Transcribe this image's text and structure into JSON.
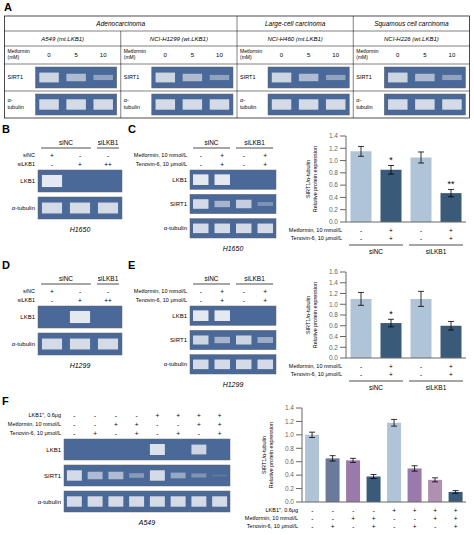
{
  "chart_data": [
    {
      "type": "blot_table",
      "title": "A",
      "color": "#4a6898",
      "columns": [
        {
          "category": "Adenocarcinoma",
          "cell_lines": [
            "A549 (mt.LKB1)",
            "NCI-H1299 (wt.LKB1)"
          ]
        },
        {
          "category": "Large-cell carcinoma",
          "cell_lines": [
            "NCI-H460 (mt.LKB1)"
          ]
        },
        {
          "category": "Squamous cell carcinoma",
          "cell_lines": [
            "NCI-H226 (wt.LKB1)"
          ]
        }
      ],
      "condition_rows": [
        {
          "label": "Metformin\n(mM)",
          "values": [
            0,
            5,
            10
          ]
        }
      ],
      "blots": [
        {
          "label": "SIRT1",
          "bands": [
            0.85,
            0.65,
            0.45
          ]
        },
        {
          "label": "α-\ntubulin",
          "bands": [
            0.9,
            0.9,
            0.9
          ]
        }
      ]
    },
    {
      "type": "blot",
      "title": "B",
      "color": "#4a6898",
      "groups": [
        "siNC",
        "siNC",
        "siLKB1"
      ],
      "condition_rows": [
        {
          "label": "siNC",
          "signs": [
            "+",
            "-",
            "-"
          ]
        },
        {
          "label": "siLKB1",
          "signs": [
            "-",
            "+",
            "++"
          ]
        }
      ],
      "blots": [
        {
          "label": "LKB1",
          "bands": [
            1.0,
            0.0,
            0.0
          ]
        },
        {
          "label": "α-tubulin",
          "bands": [
            0.9,
            0.9,
            0.9
          ]
        }
      ],
      "xlabel": "H1650"
    },
    {
      "type": "blot",
      "title": "C",
      "color": "#4a6898",
      "groups": [
        "siNC",
        "siNC",
        "siLKB1",
        "siLKB1"
      ],
      "condition_rows": [
        {
          "label": "Metformin, 10 mmol/L",
          "signs": [
            "-",
            "+",
            "-",
            "+"
          ]
        },
        {
          "label": "Tenovin-6, 10 μmol/L",
          "signs": [
            "-",
            "+",
            "-",
            "+"
          ]
        }
      ],
      "blots": [
        {
          "label": "LKB1",
          "bands": [
            1.0,
            1.0,
            0.0,
            0.0
          ]
        },
        {
          "label": "SIRT1",
          "bands": [
            0.9,
            0.6,
            0.8,
            0.35
          ]
        },
        {
          "label": "α-tubulin",
          "bands": [
            0.9,
            0.9,
            0.9,
            0.9
          ]
        }
      ],
      "xlabel": "H1650"
    },
    {
      "type": "bar",
      "categories": [
        null,
        null,
        null,
        null
      ],
      "values": [
        1.15,
        0.85,
        1.05,
        0.47
      ],
      "errors": [
        0.08,
        0.07,
        0.09,
        0.06
      ],
      "colors": [
        "#b0c4d8",
        "#3a5a7a",
        "#b0c4d8",
        "#3a5a7a"
      ],
      "ylim": [
        0,
        1.4
      ],
      "yticks": [
        {
          "value": 0,
          "label": "0.0"
        },
        0.2,
        0.4,
        0.6,
        0.8,
        {
          "value": 1,
          "label": "1.0"
        },
        1.2,
        1.4
      ],
      "ylabel": "SIRT1/α-tubulin\nRelative protein expression",
      "significance": [
        null,
        "*",
        null,
        "**"
      ],
      "condition_rows": [
        {
          "label": "Metformin, 10 mmol/L",
          "signs": [
            "-",
            "+",
            "-",
            "+"
          ]
        },
        {
          "label": "Tenovin-6, 10 μmol/L",
          "signs": [
            "-",
            "+",
            "-",
            "+"
          ]
        }
      ],
      "groups": [
        "siNC",
        "siNC",
        "siLKB1",
        "siLKB1"
      ]
    },
    {
      "type": "blot",
      "title": "D",
      "color": "#4a6898",
      "groups": [
        "siNC",
        "siNC",
        "siLKB1"
      ],
      "condition_rows": [
        {
          "label": "siNC",
          "signs": [
            "+",
            "-",
            "-"
          ]
        },
        {
          "label": "siLKB1",
          "signs": [
            "-",
            "+",
            "++"
          ]
        }
      ],
      "blots": [
        {
          "label": "LKB1",
          "bands": [
            0.0,
            1.0,
            0.0
          ]
        },
        {
          "label": "α-tubulin",
          "bands": [
            0.9,
            0.9,
            0.9
          ]
        }
      ],
      "xlabel": "H1299"
    },
    {
      "type": "blot",
      "title": "E",
      "color": "#4a6898",
      "groups": [
        "siNC",
        "siNC",
        "siLKB1",
        "siLKB1"
      ],
      "condition_rows": [
        {
          "label": "Metformin, 10 mmol/L",
          "signs": [
            "-",
            "+",
            "-",
            "+"
          ]
        },
        {
          "label": "Tenovin-6, 10 μmol/L",
          "signs": [
            "-",
            "+",
            "-",
            "+"
          ]
        }
      ],
      "blots": [
        {
          "label": "LKB1",
          "bands": [
            1.0,
            1.0,
            0.0,
            0.0
          ]
        },
        {
          "label": "SIRT1",
          "bands": [
            0.85,
            0.6,
            0.85,
            0.55
          ]
        },
        {
          "label": "α-tubulin",
          "bands": [
            0.9,
            0.9,
            0.9,
            0.9
          ]
        }
      ],
      "xlabel": "H1299"
    },
    {
      "type": "bar",
      "categories": [
        null,
        null,
        null,
        null
      ],
      "values": [
        1.1,
        0.65,
        1.1,
        0.6
      ],
      "errors": [
        0.12,
        0.07,
        0.14,
        0.08
      ],
      "colors": [
        "#b0c4d8",
        "#3a5a7a",
        "#b0c4d8",
        "#3a5a7a"
      ],
      "ylim": [
        0,
        1.6
      ],
      "yticks": [
        {
          "value": 0,
          "label": "0.0"
        },
        0.2,
        0.4,
        0.6,
        0.8,
        {
          "value": 1,
          "label": "1.0"
        },
        1.2,
        1.4,
        1.6
      ],
      "ylabel": "SIRT1/α-tubulin\nRelative protein expression",
      "significance": [
        null,
        "*",
        null,
        null
      ],
      "condition_rows": [
        {
          "label": "Metformin, 10 mmol/L",
          "signs": [
            "-",
            "+",
            "-",
            "+"
          ]
        },
        {
          "label": "Tenovin-6, 10 μmol/L",
          "signs": [
            "-",
            "+",
            "-",
            "+"
          ]
        }
      ],
      "groups": [
        "siNC",
        "siNC",
        "siLKB1",
        "siLKB1"
      ]
    },
    {
      "type": "blot",
      "title": "F",
      "color": "#4a6898",
      "condition_rows": [
        {
          "label": "LKB1ʹʹ, 0.6μg",
          "signs": [
            "-",
            "-",
            "-",
            "-",
            "+",
            "+",
            "+",
            "+"
          ]
        },
        {
          "label": "Metformin, 10 mmol/L",
          "signs": [
            "-",
            "-",
            "+",
            "+",
            "-",
            "-",
            "+",
            "+"
          ]
        },
        {
          "label": "Tenovin-6, 10 μmol/L",
          "signs": [
            "-",
            "+",
            "-",
            "+",
            "-",
            "+",
            "-",
            "+"
          ]
        }
      ],
      "blots": [
        {
          "label": "LKB1",
          "bands": [
            0.0,
            0.0,
            0.0,
            0.0,
            0.95,
            0.0,
            0.85,
            0.0
          ]
        },
        {
          "label": "SIRT1",
          "bands": [
            0.9,
            0.65,
            0.65,
            0.4,
            0.9,
            0.5,
            0.35,
            0.15
          ]
        },
        {
          "label": "α-tubulin",
          "bands": [
            0.9,
            0.9,
            0.9,
            0.9,
            0.9,
            0.9,
            0.9,
            0.9
          ]
        }
      ],
      "xlabel": "A549"
    },
    {
      "type": "bar",
      "categories": [
        null,
        null,
        null,
        null,
        null,
        null,
        null,
        null
      ],
      "values": [
        1.0,
        0.65,
        0.62,
        0.38,
        1.18,
        0.5,
        0.33,
        0.15
      ],
      "errors": [
        0.04,
        0.04,
        0.03,
        0.03,
        0.05,
        0.04,
        0.03,
        0.02
      ],
      "colors": [
        "#b0c4d8",
        "#6a7a9a",
        "#9a7aaa",
        "#3a5a7a",
        "#b0c4d8",
        "#9a7aaa",
        "#b090b0",
        "#3a5a7a"
      ],
      "ylim": [
        0,
        1.4
      ],
      "yticks": [
        {
          "value": 0,
          "label": "0.0"
        },
        0.2,
        0.4,
        0.6,
        0.8,
        {
          "value": 1,
          "label": "1.0"
        },
        1.2,
        1.4
      ],
      "ylabel": "SIRT1/α-tubulin\nRelative protein expression",
      "condition_rows": [
        {
          "label": "LKB1ʹʹ, 0.6μg",
          "signs": [
            "-",
            "-",
            "-",
            "-",
            "+",
            "+",
            "+",
            "+"
          ]
        },
        {
          "label": "Metformin, 10 mmol/L",
          "signs": [
            "-",
            "-",
            "+",
            "+",
            "-",
            "-",
            "+",
            "+"
          ]
        },
        {
          "label": "Tenovin-6, 10 μmol/L",
          "signs": [
            "-",
            "+",
            "-",
            "+",
            "-",
            "+",
            "-",
            "+"
          ]
        }
      ]
    }
  ]
}
